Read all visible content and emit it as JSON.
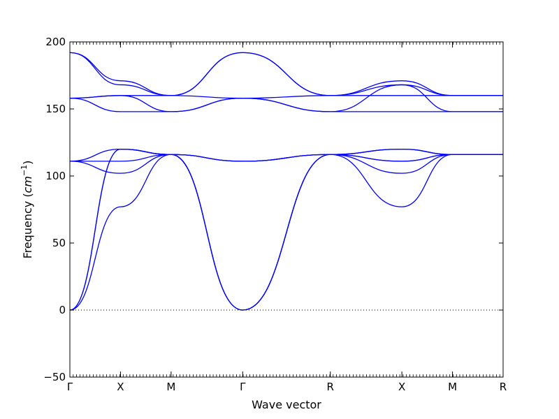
{
  "chart_data": {
    "type": "line",
    "title": "",
    "xlabel": "Wave vector",
    "ylabel_text": "Frequency (",
    "ylabel_unit_base": "cm",
    "ylabel_unit_exp": "−1",
    "ylabel_close": ")",
    "ylim": [
      -50,
      200
    ],
    "yticks": [
      -50,
      0,
      50,
      100,
      150,
      200
    ],
    "ytick_labels": [
      "−50",
      "0",
      "50",
      "100",
      "150",
      "200"
    ],
    "xticks": [
      {
        "label": "Γ",
        "x": 0
      },
      {
        "label": "X",
        "x": 0.5
      },
      {
        "label": "M",
        "x": 1.0
      },
      {
        "label": "Γ",
        "x": 1.707
      },
      {
        "label": "R",
        "x": 2.573
      },
      {
        "label": "X",
        "x": 3.28
      },
      {
        "label": "M",
        "x": 3.78
      },
      {
        "label": "R",
        "x": 4.28
      }
    ],
    "zero_line": true,
    "line_color": "#0000ff",
    "series": [
      {
        "x": [
          0,
          0.5,
          1.0,
          1.707,
          2.573,
          3.28,
          3.78,
          4.28
        ],
        "values": [
          0,
          77,
          116,
          0,
          116,
          77,
          116,
          116
        ]
      },
      {
        "x": [
          0,
          0.5,
          1.0,
          1.707,
          2.573,
          3.28,
          3.78,
          4.28
        ],
        "values": [
          0,
          120,
          116,
          0,
          116,
          120,
          116,
          116
        ]
      },
      {
        "x": [
          0,
          0.5,
          1.0,
          1.707,
          2.573,
          3.28,
          3.78,
          4.28
        ],
        "values": [
          0,
          120,
          116,
          0,
          116,
          102,
          116,
          116
        ]
      },
      {
        "x": [
          0,
          0.5,
          1.0,
          1.707,
          2.573,
          3.28,
          3.78,
          4.28
        ],
        "values": [
          111,
          102,
          116,
          111,
          116,
          111,
          116,
          116
        ]
      },
      {
        "x": [
          0,
          0.5,
          1.0,
          1.707,
          2.573,
          3.28,
          3.78,
          4.28
        ],
        "values": [
          111,
          120,
          116,
          111,
          116,
          120,
          116,
          116
        ]
      },
      {
        "x": [
          0,
          0.5,
          1.0,
          1.707,
          2.573,
          3.28,
          3.78,
          4.28
        ],
        "values": [
          111,
          111,
          116,
          111,
          116,
          111,
          116,
          116
        ]
      },
      {
        "x": [
          0,
          0.5,
          1.0,
          1.707,
          2.573,
          3.28,
          3.78,
          4.28
        ],
        "values": [
          158,
          148,
          148,
          158,
          148,
          148,
          148,
          148
        ]
      },
      {
        "x": [
          0,
          0.5,
          1.0,
          1.707,
          2.573,
          3.28,
          3.78,
          4.28
        ],
        "values": [
          158,
          160,
          148,
          158,
          148,
          168,
          148,
          148
        ]
      },
      {
        "x": [
          0,
          0.5,
          1.0,
          1.707,
          2.573,
          3.28,
          3.78,
          4.28
        ],
        "values": [
          158,
          160,
          160,
          158,
          160,
          160,
          160,
          160
        ]
      },
      {
        "x": [
          0,
          0.5,
          1.0,
          1.707,
          2.573,
          3.28,
          3.78,
          4.28
        ],
        "values": [
          192,
          168,
          160,
          192,
          160,
          171,
          160,
          160
        ]
      },
      {
        "x": [
          0,
          0.5,
          1.0,
          1.707,
          2.573,
          3.28,
          3.78,
          4.28
        ],
        "values": [
          192,
          171,
          160,
          192,
          160,
          168,
          160,
          160
        ]
      }
    ]
  }
}
